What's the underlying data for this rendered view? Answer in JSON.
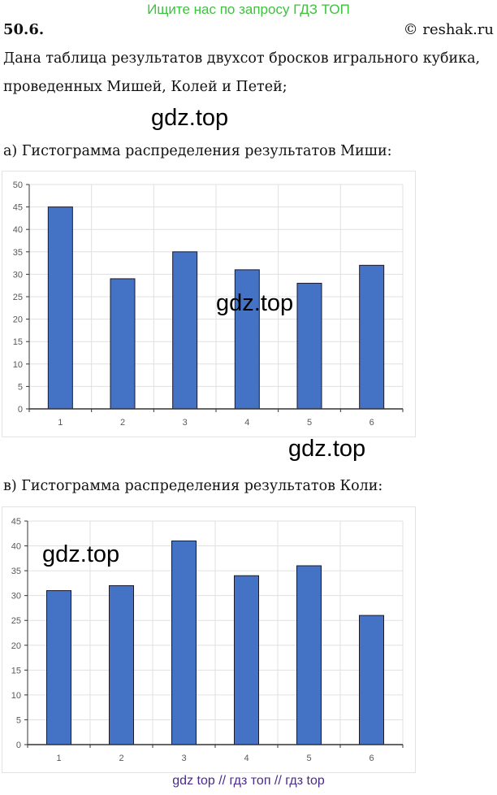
{
  "banner": "Ищите нас по запросу ГДЗ ТОП",
  "problem_number": "50.6.",
  "copyright": "© reshak.ru",
  "text_line1": "Дана таблица результатов двухсот бросков игрального кубика,",
  "text_line2": "проведенных Мишей, Колей и Петей;",
  "watermark": "gdz.top",
  "caption_a": "а) Гистограмма распределения результатов Миши:",
  "caption_b": "в) Гистограмма распределения результатов Коли:",
  "footer": "gdz top  //  гдз топ  //  гдз top",
  "chart_data": [
    {
      "type": "bar",
      "title": "",
      "categories": [
        "1",
        "2",
        "3",
        "4",
        "5",
        "6"
      ],
      "values": [
        45,
        29,
        35,
        31,
        28,
        32
      ],
      "ylim": [
        0,
        50
      ],
      "ystep": 5,
      "grid": true,
      "bar_color": "#4472c4"
    },
    {
      "type": "bar",
      "title": "",
      "categories": [
        "1",
        "2",
        "3",
        "4",
        "5",
        "6"
      ],
      "values": [
        31,
        32,
        41,
        34,
        36,
        26
      ],
      "ylim": [
        0,
        45
      ],
      "ystep": 5,
      "grid": true,
      "bar_color": "#4472c4"
    }
  ]
}
